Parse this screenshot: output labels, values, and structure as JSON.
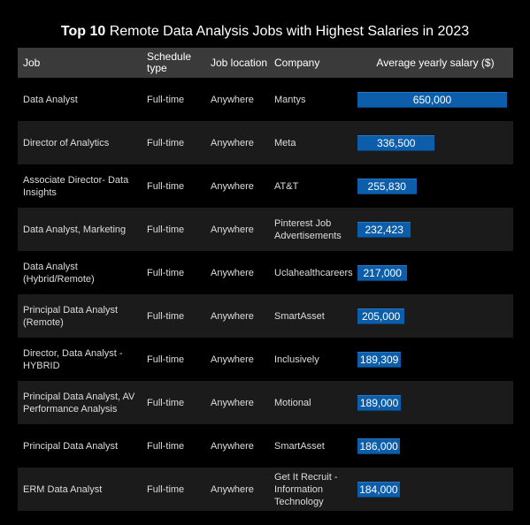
{
  "title": {
    "bold": "Top 10",
    "rest": "Remote Data Analysis Jobs with Highest Salaries in 2023"
  },
  "headers": {
    "job": "Job",
    "schedule": "Schedule type",
    "location": "Job location",
    "company": "Company",
    "salary": "Average yearly salary ($)"
  },
  "colors": {
    "bar": "#0d5eaa",
    "header_bg": "#3a3a3a",
    "row_alt_bg": "#1b1b1b",
    "background": "#000000"
  },
  "chart_data": {
    "type": "table",
    "title": "Top 10 Remote Data Analysis Jobs with Highest Salaries in 2023",
    "columns": [
      "Job",
      "Schedule type",
      "Job location",
      "Company",
      "Average yearly salary ($)"
    ],
    "salary_range": [
      0,
      650000
    ],
    "rows": [
      {
        "job": "Data Analyst",
        "schedule": "Full-time",
        "location": "Anywhere",
        "company": "Mantys",
        "salary": 650000,
        "salary_label": "650,000"
      },
      {
        "job": "Director of Analytics",
        "schedule": "Full-time",
        "location": "Anywhere",
        "company": "Meta",
        "salary": 336500,
        "salary_label": "336,500"
      },
      {
        "job": "Associate Director- Data Insights",
        "schedule": "Full-time",
        "location": "Anywhere",
        "company": "AT&T",
        "salary": 255830,
        "salary_label": "255,830"
      },
      {
        "job": "Data Analyst, Marketing",
        "schedule": "Full-time",
        "location": "Anywhere",
        "company": "Pinterest Job Advertisements",
        "salary": 232423,
        "salary_label": "232,423"
      },
      {
        "job": "Data Analyst (Hybrid/Remote)",
        "schedule": "Full-time",
        "location": "Anywhere",
        "company": "Uclahealthcareers",
        "salary": 217000,
        "salary_label": "217,000"
      },
      {
        "job": "Principal Data Analyst (Remote)",
        "schedule": "Full-time",
        "location": "Anywhere",
        "company": "SmartAsset",
        "salary": 205000,
        "salary_label": "205,000"
      },
      {
        "job": "Director, Data Analyst - HYBRID",
        "schedule": "Full-time",
        "location": "Anywhere",
        "company": "Inclusively",
        "salary": 189309,
        "salary_label": "189,309"
      },
      {
        "job": "Principal Data Analyst, AV Performance Analysis",
        "schedule": "Full-time",
        "location": "Anywhere",
        "company": "Motional",
        "salary": 189000,
        "salary_label": "189,000"
      },
      {
        "job": "Principal Data Analyst",
        "schedule": "Full-time",
        "location": "Anywhere",
        "company": "SmartAsset",
        "salary": 186000,
        "salary_label": "186,000"
      },
      {
        "job": "ERM Data Analyst",
        "schedule": "Full-time",
        "location": "Anywhere",
        "company": "Get It Recruit - Information Technology",
        "salary": 184000,
        "salary_label": "184,000"
      }
    ]
  }
}
